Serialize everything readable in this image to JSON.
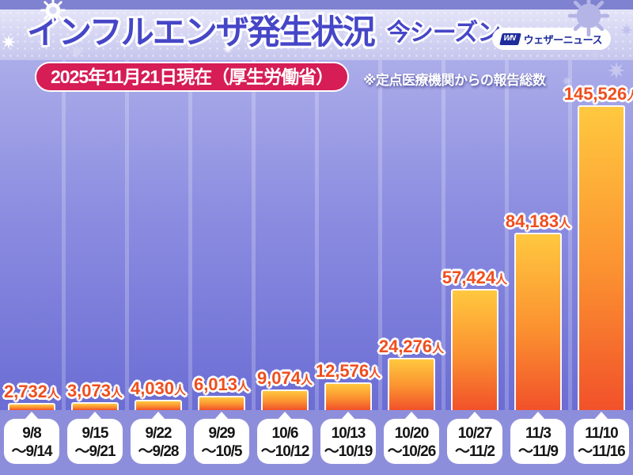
{
  "header": {
    "title": "インフルエンザ発生状況",
    "season": "今シーズン",
    "logo": {
      "mark": "WN",
      "name": "ウェザーニュース"
    }
  },
  "badge": {
    "date_label": "2025年11月21日現在（厚生労働省）"
  },
  "note": "※定点医療機関からの報告総数",
  "colors": {
    "badge_red": "#d61d55",
    "title_blue": "#4646c8",
    "value_orange": "#ef4e1e",
    "bar_top": "#ffc83f",
    "bar_bottom": "#f1512a",
    "bg_top": "#abace9",
    "bg_bottom": "#6b6dd4",
    "footer_purple": "#8d8edb"
  },
  "decorative_icons": [
    "virus-icon",
    "sparkle-icon"
  ],
  "chart_data": {
    "type": "bar",
    "title": "インフルエンザ発生状況 今シーズン",
    "categories": [
      "9/8～9/14",
      "9/15～9/21",
      "9/22～9/28",
      "9/29～10/5",
      "10/6～10/12",
      "10/13～10/19",
      "10/20～10/26",
      "10/27～11/2",
      "11/3～11/9",
      "11/10～11/16"
    ],
    "categories_lines": [
      [
        "9/8",
        "～9/14"
      ],
      [
        "9/15",
        "～9/21"
      ],
      [
        "9/22",
        "～9/28"
      ],
      [
        "9/29",
        "～10/5"
      ],
      [
        "10/6",
        "～10/12"
      ],
      [
        "10/13",
        "～10/19"
      ],
      [
        "10/20",
        "～10/26"
      ],
      [
        "10/27",
        "～11/2"
      ],
      [
        "11/3",
        "～11/9"
      ],
      [
        "11/10",
        "～11/16"
      ]
    ],
    "values": [
      2732,
      3073,
      4030,
      6013,
      9074,
      12576,
      24276,
      57424,
      84183,
      145526
    ],
    "value_labels": [
      "2,732",
      "3,073",
      "4,030",
      "6,013",
      "9,074",
      "12,576",
      "24,276",
      "57,424",
      "84,183",
      "145,526"
    ],
    "unit": "人",
    "ylim": [
      0,
      145526
    ],
    "xlabel": "",
    "ylabel": "",
    "legend": "none",
    "grid": "vertical-column-separators"
  }
}
